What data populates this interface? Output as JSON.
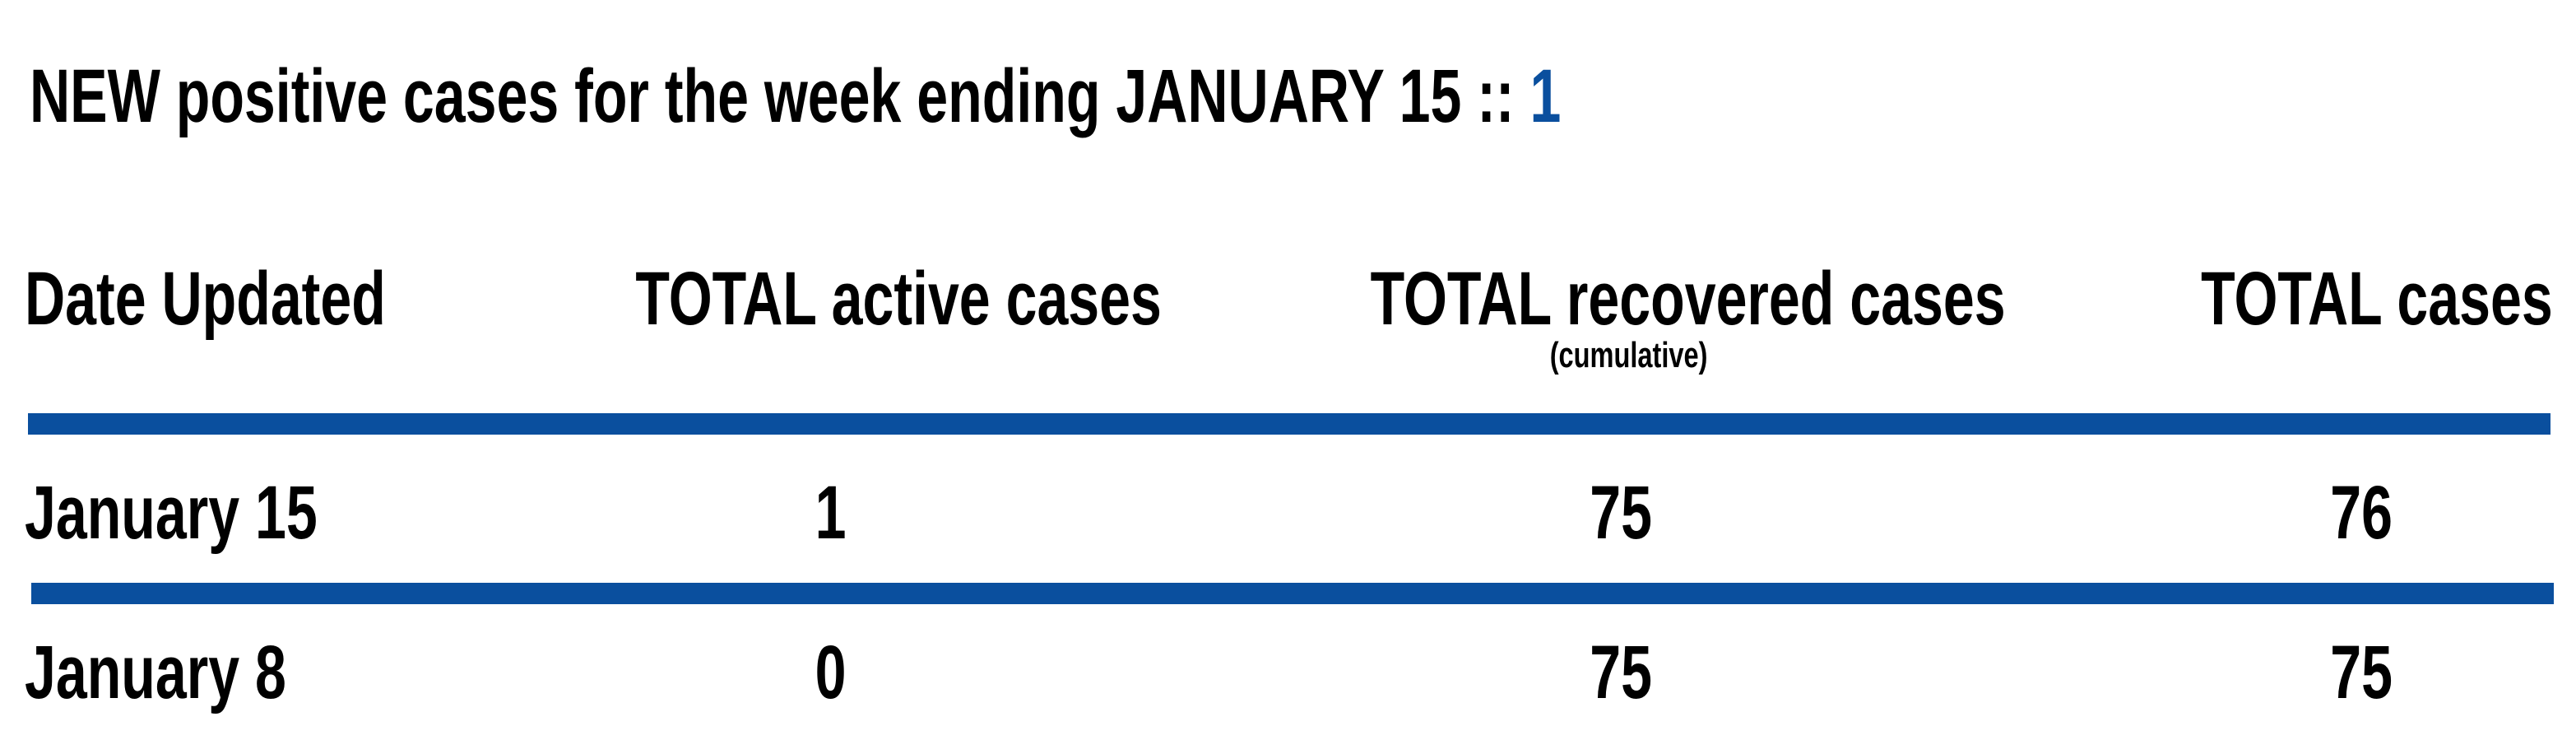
{
  "headline": {
    "text": "NEW positive cases for the week ending JANUARY 15 ::",
    "value": "1"
  },
  "table": {
    "columns": [
      {
        "label": "Date Updated"
      },
      {
        "label": "TOTAL active cases"
      },
      {
        "label": "TOTAL recovered cases",
        "sublabel": "(cumulative)"
      },
      {
        "label": "TOTAL cases"
      }
    ],
    "rows": [
      {
        "date": "January 15",
        "active": "1",
        "recovered": "75",
        "total": "76"
      },
      {
        "date": "January 8",
        "active": "0",
        "recovered": "75",
        "total": "75"
      }
    ]
  },
  "colors": {
    "accent": "#0a4f9e",
    "text": "#000000",
    "background": "#ffffff"
  }
}
